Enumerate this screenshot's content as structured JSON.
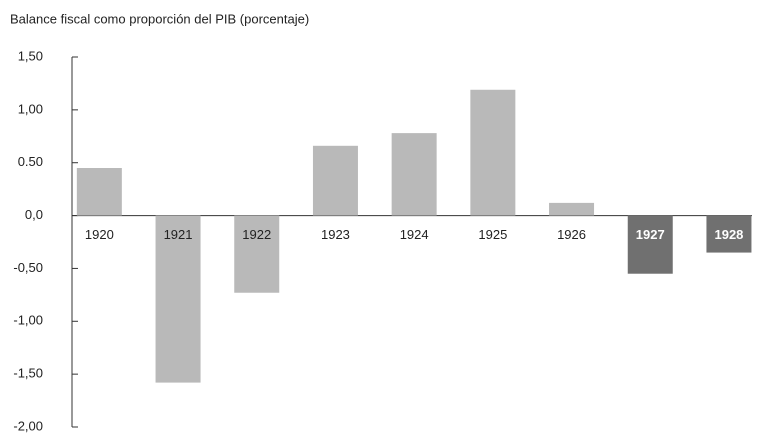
{
  "chart_data": {
    "type": "bar",
    "title": "Balance fiscal como proporción del PIB (porcentaje)",
    "categories": [
      "1920",
      "1921",
      "1922",
      "1923",
      "1924",
      "1925",
      "1926",
      "1927",
      "1928"
    ],
    "values": [
      0.45,
      -1.58,
      -0.73,
      0.66,
      0.78,
      1.19,
      0.12,
      -0.55,
      -0.35
    ],
    "colors": [
      "#b9b9b9",
      "#b9b9b9",
      "#b9b9b9",
      "#b9b9b9",
      "#b9b9b9",
      "#b9b9b9",
      "#b9b9b9",
      "#707070",
      "#707070"
    ],
    "ylim": [
      -2,
      1.5
    ],
    "yticks": [
      {
        "value": 1.5,
        "label": "1,50"
      },
      {
        "value": 1,
        "label": "1,00"
      },
      {
        "value": 0.5,
        "label": "0.50"
      },
      {
        "value": 0,
        "label": "0,0"
      },
      {
        "value": -0.5,
        "label": "-0,50"
      },
      {
        "value": -1,
        "label": "-1,00"
      },
      {
        "value": -1.5,
        "label": "-1,50"
      },
      {
        "value": -2,
        "label": "-2,00"
      }
    ],
    "grid": false
  }
}
